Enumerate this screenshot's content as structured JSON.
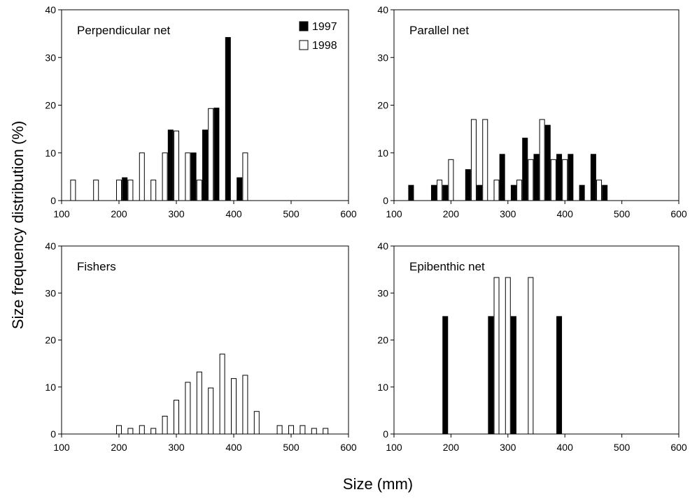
{
  "figure": {
    "ylabel": "Size frequency distribution (%)",
    "xlabel": "Size (mm)"
  },
  "chart_data": [
    {
      "type": "bar",
      "panel_label": "Perpendicular net",
      "xlim": [
        100,
        600
      ],
      "ylim": [
        0,
        40
      ],
      "xticks": [
        100,
        200,
        300,
        400,
        500,
        600
      ],
      "yticks": [
        0,
        10,
        20,
        30,
        40
      ],
      "legend": [
        "1997",
        "1998"
      ],
      "legend_position": "top-right",
      "series": [
        {
          "name": "1997",
          "color": "#000000",
          "x": [
            210,
            290,
            330,
            350,
            370,
            390,
            410
          ],
          "values": [
            4.8,
            14.8,
            10.0,
            14.8,
            19.4,
            34.2,
            4.8
          ]
        },
        {
          "name": "1998",
          "color": "#ffffff",
          "x": [
            120,
            160,
            200,
            220,
            240,
            260,
            280,
            300,
            320,
            340,
            360,
            420
          ],
          "values": [
            4.3,
            4.3,
            4.3,
            4.3,
            10.0,
            4.3,
            10.0,
            14.6,
            10.0,
            4.3,
            19.3,
            10.0
          ]
        }
      ]
    },
    {
      "type": "bar",
      "panel_label": "Parallel net",
      "xlim": [
        100,
        600
      ],
      "ylim": [
        0,
        40
      ],
      "xticks": [
        100,
        200,
        300,
        400,
        500,
        600
      ],
      "yticks": [
        0,
        10,
        20,
        30,
        40
      ],
      "series": [
        {
          "name": "1997",
          "color": "#000000",
          "x": [
            130,
            170,
            190,
            230,
            250,
            290,
            310,
            330,
            350,
            370,
            390,
            410,
            430,
            450,
            470
          ],
          "values": [
            3.2,
            3.2,
            3.2,
            6.5,
            3.2,
            9.7,
            3.2,
            13.1,
            9.7,
            15.8,
            9.7,
            9.7,
            3.2,
            9.7,
            3.2
          ]
        },
        {
          "name": "1998",
          "color": "#ffffff",
          "x": [
            180,
            200,
            240,
            260,
            280,
            320,
            340,
            360,
            380,
            400,
            460
          ],
          "values": [
            4.3,
            8.6,
            17.0,
            17.0,
            4.3,
            4.3,
            8.6,
            17.0,
            8.6,
            8.6,
            4.3
          ]
        }
      ]
    },
    {
      "type": "bar",
      "panel_label": "Fishers",
      "xlim": [
        100,
        600
      ],
      "ylim": [
        0,
        40
      ],
      "xticks": [
        100,
        200,
        300,
        400,
        500,
        600
      ],
      "yticks": [
        0,
        10,
        20,
        30,
        40
      ],
      "series": [
        {
          "name": "1998",
          "color": "#ffffff",
          "x": [
            200,
            220,
            240,
            260,
            280,
            300,
            320,
            340,
            360,
            380,
            400,
            420,
            440,
            480,
            500,
            520,
            540,
            560
          ],
          "values": [
            1.8,
            1.2,
            1.8,
            1.2,
            3.8,
            7.2,
            11.0,
            13.2,
            9.8,
            17.0,
            11.8,
            12.5,
            4.8,
            1.8,
            1.8,
            1.8,
            1.2,
            1.2
          ]
        }
      ]
    },
    {
      "type": "bar",
      "panel_label": "Epibenthic net",
      "xlim": [
        100,
        600
      ],
      "ylim": [
        0,
        40
      ],
      "xticks": [
        100,
        200,
        300,
        400,
        500,
        600
      ],
      "yticks": [
        0,
        10,
        20,
        30,
        40
      ],
      "series": [
        {
          "name": "1997",
          "color": "#000000",
          "x": [
            190,
            270,
            310,
            390
          ],
          "values": [
            25.0,
            25.0,
            25.0,
            25.0
          ]
        },
        {
          "name": "1998",
          "color": "#ffffff",
          "x": [
            280,
            300,
            340
          ],
          "values": [
            33.3,
            33.3,
            33.3
          ]
        }
      ]
    }
  ]
}
